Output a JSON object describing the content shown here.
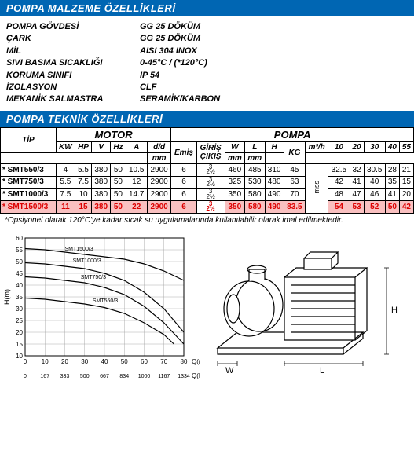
{
  "headers": {
    "materials": "POMPA MALZEME ÖZELLİKLERİ",
    "technical": "POMPA TEKNİK ÖZELLİKLERİ"
  },
  "materials": [
    {
      "label": "POMPA GÖVDESİ",
      "value": "GG 25 DÖKÜM"
    },
    {
      "label": "ÇARK",
      "value": "GG 25 DÖKÜM"
    },
    {
      "label": "MİL",
      "value": "AISI 304 INOX"
    },
    {
      "label": "SIVI BASMA SICAKLIĞI",
      "value": "0-45°C / (*120°C)"
    },
    {
      "label": "KORUMA SINIFI",
      "value": "IP 54"
    },
    {
      "label": "İZOLASYON",
      "value": "CLF"
    },
    {
      "label": "MEKANİK SALMASTRA",
      "value": "SERAMİK/KARBON"
    }
  ],
  "tech_table": {
    "group_motor": "MOTOR",
    "group_pompa": "POMPA",
    "cols": {
      "tip": "TİP",
      "kw": "KW",
      "hp": "HP",
      "v": "V",
      "hz": "Hz",
      "a": "A",
      "dd": "d/d",
      "emis": "Emiş",
      "giris": "GİRİŞ",
      "cikis": "ÇIKIŞ",
      "w": "W",
      "l": "L",
      "h": "H",
      "mm": "mm",
      "kg": "KG",
      "m3h": "m³/h",
      "mss": "mss",
      "flow_headers": [
        "10",
        "20",
        "30",
        "40",
        "55"
      ]
    },
    "emis_val": "6",
    "giris_frac": "3",
    "cikis_frac": "2½",
    "rows": [
      {
        "star": true,
        "tip": "SMT550/3",
        "kw": "4",
        "hp": "5.5",
        "v": "380",
        "hz": "50",
        "a": "10.5",
        "dd": "2900",
        "w": "460",
        "l": "485",
        "h": "310",
        "kg": "45",
        "heads": [
          "32.5",
          "32",
          "30.5",
          "28",
          "21"
        ],
        "hl": false
      },
      {
        "star": true,
        "tip": "SMT750/3",
        "kw": "5.5",
        "hp": "7.5",
        "v": "380",
        "hz": "50",
        "a": "12",
        "dd": "2900",
        "w": "325",
        "l": "530",
        "h": "480",
        "kg": "63",
        "heads": [
          "42",
          "41",
          "40",
          "35",
          "15"
        ],
        "hl": false
      },
      {
        "star": true,
        "tip": "SMT1000/3",
        "kw": "7.5",
        "hp": "10",
        "v": "380",
        "hz": "50",
        "a": "14.7",
        "dd": "2900",
        "w": "350",
        "l": "580",
        "h": "490",
        "kg": "70",
        "heads": [
          "48",
          "47",
          "46",
          "41",
          "20"
        ],
        "hl": false
      },
      {
        "star": true,
        "tip": "SMT1500/3",
        "kw": "11",
        "hp": "15",
        "v": "380",
        "hz": "50",
        "a": "22",
        "dd": "2900",
        "w": "350",
        "l": "580",
        "h": "490",
        "kg": "83.5",
        "heads": [
          "54",
          "53",
          "52",
          "50",
          "42"
        ],
        "hl": true
      }
    ]
  },
  "footnote": "*Opsiyonel olarak 120°C'ye kadar sıcak su uygulamalarında kullanılabilir olarak imal edilmektedir.",
  "chart": {
    "ylabel": "H(m)",
    "xlabel_top": "Q(m³/h)",
    "xlabel_bot": "Q(L/min)",
    "y_ticks": [
      10,
      15,
      20,
      25,
      30,
      35,
      40,
      45,
      50,
      55,
      60
    ],
    "x_ticks_top": [
      0,
      10,
      20,
      30,
      40,
      50,
      60,
      70,
      80
    ],
    "x_ticks_bot": [
      0,
      167,
      333,
      500,
      667,
      834,
      1000,
      1167,
      1334
    ],
    "xlim": [
      0,
      80
    ],
    "ylim": [
      10,
      60
    ],
    "grid_color": "#999",
    "series": [
      {
        "name": "SMT1500/3",
        "labelx": 20,
        "labely": 54,
        "pts": [
          [
            0,
            55.5
          ],
          [
            10,
            55
          ],
          [
            20,
            54
          ],
          [
            30,
            53
          ],
          [
            40,
            52
          ],
          [
            50,
            51
          ],
          [
            60,
            49
          ],
          [
            70,
            46
          ],
          [
            80,
            42
          ]
        ]
      },
      {
        "name": "SMT1000/3",
        "labelx": 24,
        "labely": 49,
        "pts": [
          [
            0,
            49.5
          ],
          [
            10,
            49
          ],
          [
            20,
            48
          ],
          [
            30,
            47
          ],
          [
            40,
            45
          ],
          [
            50,
            42
          ],
          [
            60,
            37
          ],
          [
            70,
            30
          ],
          [
            80,
            20
          ]
        ]
      },
      {
        "name": "SMT750/3",
        "labelx": 28,
        "labely": 42,
        "pts": [
          [
            0,
            43.5
          ],
          [
            10,
            43
          ],
          [
            20,
            42
          ],
          [
            30,
            41
          ],
          [
            40,
            39
          ],
          [
            50,
            36
          ],
          [
            60,
            31
          ],
          [
            70,
            24
          ],
          [
            80,
            15
          ]
        ]
      },
      {
        "name": "SMT550/3",
        "labelx": 34,
        "labely": 32,
        "pts": [
          [
            0,
            34.5
          ],
          [
            10,
            34
          ],
          [
            20,
            33
          ],
          [
            30,
            32
          ],
          [
            40,
            30.5
          ],
          [
            50,
            28
          ],
          [
            60,
            24
          ],
          [
            70,
            19
          ],
          [
            75,
            15
          ]
        ]
      }
    ],
    "line_color": "#000",
    "line_width": 1.2
  },
  "drawing_labels": {
    "w": "W",
    "l": "L",
    "h": "H"
  }
}
